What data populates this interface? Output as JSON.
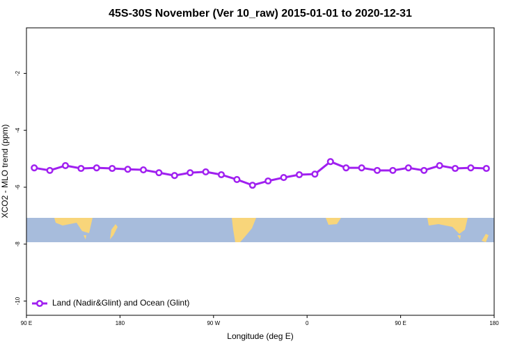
{
  "chart_data": {
    "type": "line",
    "title": "45S-30S November (Ver 10_raw)   2015-01-01 to 2020-12-31",
    "x_label": "Longitude (deg E)",
    "y_label": "XCO2 - MLO trend (ppm)",
    "x": [
      97.5,
      112.5,
      127.5,
      142.5,
      157.5,
      172.5,
      187.5,
      202.5,
      217.5,
      232.5,
      247.5,
      262.5,
      277.5,
      292.5,
      307.5,
      322.5,
      337.5,
      352.5,
      367.5,
      382.5,
      397.5,
      412.5,
      427.5,
      442.5,
      457.5,
      472.5,
      487.5,
      502.5,
      517.5,
      532.5
    ],
    "series": [
      {
        "name": "Land (Nadir&Glint) and Ocean (Glint)",
        "color": "#a020f0",
        "values": [
          -5.32,
          -5.41,
          -5.24,
          -5.34,
          -5.32,
          -5.34,
          -5.37,
          -5.39,
          -5.49,
          -5.59,
          -5.49,
          -5.46,
          -5.56,
          -5.73,
          -5.93,
          -5.78,
          -5.66,
          -5.56,
          -5.54,
          -5.1,
          -5.32,
          -5.32,
          -5.41,
          -5.41,
          -5.32,
          -5.41,
          -5.24,
          -5.34,
          -5.32,
          -5.34
        ]
      }
    ],
    "xlim": [
      90,
      540
    ],
    "xticks": [
      {
        "value": 90,
        "label": "90 E"
      },
      180,
      {
        "value": 270,
        "label": "90 W"
      },
      {
        "value": 360,
        "label": "0"
      },
      {
        "value": 450,
        "label": "90 E"
      },
      {
        "value": 540,
        "label": "180"
      }
    ],
    "ylim": [
      -10.5,
      -0.4
    ],
    "yticks": [
      -2,
      -4,
      -6,
      -8,
      -10
    ],
    "legend": "bottom-left"
  }
}
